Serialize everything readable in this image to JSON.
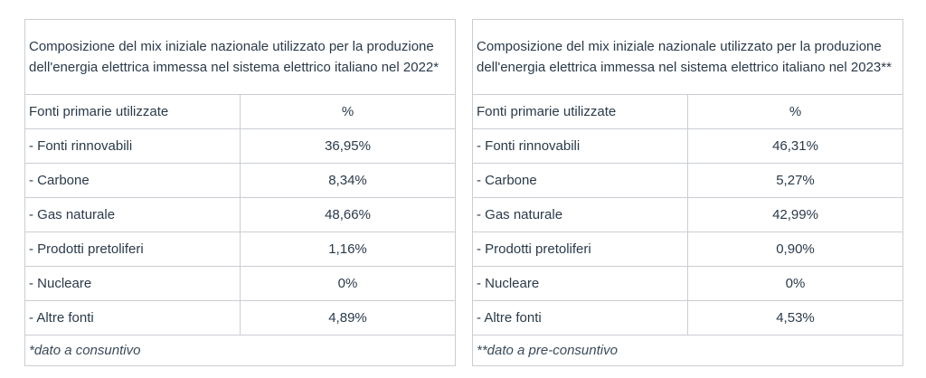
{
  "tables": [
    {
      "title": "Composizione del mix iniziale nazionale utilizzato per la produzione dell'energia elettrica immessa nel sistema elettrico italiano nel 2022*",
      "header": {
        "source": "Fonti primarie utilizzate",
        "unit": "%"
      },
      "rows": [
        {
          "source": "- Fonti rinnovabili",
          "value": "36,95%"
        },
        {
          "source": "- Carbone",
          "value": "8,34%"
        },
        {
          "source": "- Gas naturale",
          "value": "48,66%"
        },
        {
          "source": "- Prodotti pretoliferi",
          "value": "1,16%"
        },
        {
          "source": "- Nucleare",
          "value": "0%"
        },
        {
          "source": "- Altre fonti",
          "value": "4,89%"
        }
      ],
      "note": "*dato a consuntivo"
    },
    {
      "title": "Composizione del mix iniziale nazionale utilizzato per la produzione dell'energia elettrica immessa nel sistema elettrico italiano nel 2023**",
      "header": {
        "source": "Fonti primarie utilizzate",
        "unit": "%"
      },
      "rows": [
        {
          "source": "- Fonti rinnovabili",
          "value": "46,31%"
        },
        {
          "source": "- Carbone",
          "value": "5,27%"
        },
        {
          "source": "- Gas naturale",
          "value": "42,99%"
        },
        {
          "source": "- Prodotti pretoliferi",
          "value": "0,90%"
        },
        {
          "source": "- Nucleare",
          "value": "0%"
        },
        {
          "source": "- Altre fonti",
          "value": "4,53%"
        }
      ],
      "note": "**dato a pre-consuntivo"
    }
  ]
}
